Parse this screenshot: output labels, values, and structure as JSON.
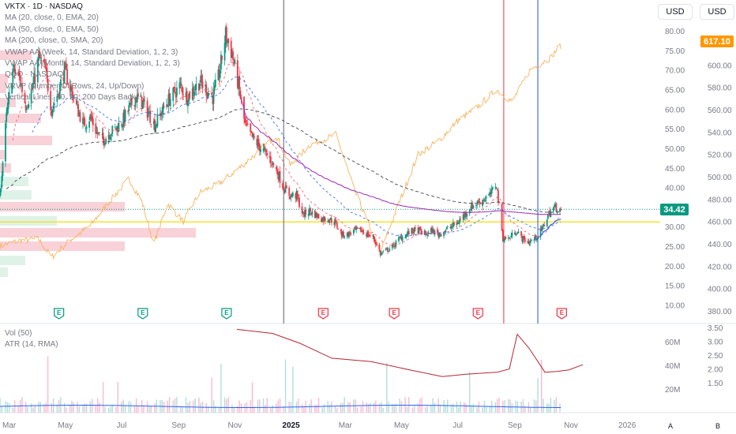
{
  "header": {
    "symbol_line": "VKTX · 1D · NASDAQ",
    "indicators": [
      "MA (20, close, 0, EMA, 20)",
      "MA (50, close, 0, EMA, 50)",
      "MA (200, close, 0, SMA, 20)",
      "VWAP AA (Week, 14, Standard Deviation, 1, 2, 3)",
      "VWAP AA (Month, 14, Standard Deviation, 1, 2, 3)",
      "QQQ · NASDAQ",
      "VRVP (Number Of Rows, 24, Up/Down)",
      "Vertical Lines: 20, 50, 200 Days Back"
    ],
    "currency_left": "USD",
    "currency_right": "USD"
  },
  "lower_pane": {
    "labels": [
      "Vol (50)",
      "ATR (14, RMA)"
    ]
  },
  "corner": {
    "a_label": "A",
    "b_label": "B"
  },
  "chart_data": {
    "type": "candlestick",
    "symbol": "VKTX",
    "price_axis": {
      "min": 10,
      "max": 80,
      "ticks": [
        "10.00",
        "15.00",
        "20.00",
        "25.00",
        "30.00",
        "35.00",
        "40.00",
        "45.00",
        "50.00",
        "55.00",
        "60.00",
        "65.00",
        "70.00",
        "75.00",
        "80.00"
      ]
    },
    "comparison_axis": {
      "min": 380,
      "max": 620,
      "ticks": [
        "380.00",
        "400.00",
        "420.00",
        "440.00",
        "460.00",
        "480.00",
        "500.00",
        "520.00",
        "540.00",
        "560.00",
        "580.00",
        "600.00"
      ]
    },
    "atr_axis": {
      "ticks": [
        "1.50",
        "2.00",
        "2.50",
        "3.00",
        "3.50"
      ]
    },
    "volume_axis": {
      "ticks": [
        "20M",
        "40M",
        "60M"
      ]
    },
    "x_labels": [
      "Mar",
      "May",
      "Jul",
      "Sep",
      "Nov",
      "2025",
      "Mar",
      "May",
      "Jul",
      "Sep",
      "Nov",
      "2026"
    ],
    "last_price": "34.42",
    "comparison_last": "617.10",
    "horizontal_line": 31.2,
    "vertical_lines": [
      {
        "date": "2024-12-24",
        "color": "#5d606b"
      },
      {
        "date": "2025-08-20",
        "color": "#f23645"
      },
      {
        "date": "2025-09-26",
        "color": "#1e53e5"
      }
    ],
    "earnings_markers": [
      {
        "date": "2024-04-24",
        "label": "E",
        "status": "past"
      },
      {
        "date": "2024-07-24",
        "label": "E",
        "status": "past"
      },
      {
        "date": "2024-10-23",
        "label": "E",
        "status": "past"
      },
      {
        "date": "2025-02-05",
        "label": "E",
        "status": "upcoming"
      },
      {
        "date": "2025-04-23",
        "label": "E",
        "status": "upcoming"
      },
      {
        "date": "2025-07-23",
        "label": "E",
        "status": "upcoming"
      },
      {
        "date": "2025-10-22",
        "label": "E",
        "status": "upcoming"
      }
    ],
    "price_path": [
      [
        "2024-02-20",
        38
      ],
      [
        "2024-02-27",
        58
      ],
      [
        "2024-03-05",
        70
      ],
      [
        "2024-03-12",
        68
      ],
      [
        "2024-03-19",
        61
      ],
      [
        "2024-03-26",
        65
      ],
      [
        "2024-04-02",
        73
      ],
      [
        "2024-04-09",
        70
      ],
      [
        "2024-04-16",
        60
      ],
      [
        "2024-04-23",
        64
      ],
      [
        "2024-04-30",
        70
      ],
      [
        "2024-05-07",
        65
      ],
      [
        "2024-05-14",
        60
      ],
      [
        "2024-05-21",
        56
      ],
      [
        "2024-05-28",
        58
      ],
      [
        "2024-06-04",
        54
      ],
      [
        "2024-06-11",
        52
      ],
      [
        "2024-06-18",
        54
      ],
      [
        "2024-06-25",
        55
      ],
      [
        "2024-07-02",
        57
      ],
      [
        "2024-07-09",
        60
      ],
      [
        "2024-07-16",
        63
      ],
      [
        "2024-07-23",
        62
      ],
      [
        "2024-07-30",
        59
      ],
      [
        "2024-08-06",
        56
      ],
      [
        "2024-08-13",
        59
      ],
      [
        "2024-08-20",
        62
      ],
      [
        "2024-08-27",
        64
      ],
      [
        "2024-09-03",
        66
      ],
      [
        "2024-09-10",
        63
      ],
      [
        "2024-09-17",
        65
      ],
      [
        "2024-09-24",
        67
      ],
      [
        "2024-10-01",
        65
      ],
      [
        "2024-10-08",
        63
      ],
      [
        "2024-10-15",
        69
      ],
      [
        "2024-10-22",
        79
      ],
      [
        "2024-10-29",
        74
      ],
      [
        "2024-11-05",
        66
      ],
      [
        "2024-11-12",
        56
      ],
      [
        "2024-11-19",
        53
      ],
      [
        "2024-11-26",
        51
      ],
      [
        "2024-12-03",
        49
      ],
      [
        "2024-12-10",
        47
      ],
      [
        "2024-12-17",
        44
      ],
      [
        "2024-12-24",
        40
      ],
      [
        "2024-12-31",
        38
      ],
      [
        "2025-01-07",
        38
      ],
      [
        "2025-01-14",
        33
      ],
      [
        "2025-01-21",
        34
      ],
      [
        "2025-01-28",
        33
      ],
      [
        "2025-02-04",
        32
      ],
      [
        "2025-02-11",
        32
      ],
      [
        "2025-02-18",
        31
      ],
      [
        "2025-02-25",
        28
      ],
      [
        "2025-03-04",
        28
      ],
      [
        "2025-03-11",
        29
      ],
      [
        "2025-03-18",
        29
      ],
      [
        "2025-03-25",
        28
      ],
      [
        "2025-04-01",
        27
      ],
      [
        "2025-04-08",
        23
      ],
      [
        "2025-04-15",
        24
      ],
      [
        "2025-04-22",
        25
      ],
      [
        "2025-04-29",
        27
      ],
      [
        "2025-05-06",
        28
      ],
      [
        "2025-05-13",
        29
      ],
      [
        "2025-05-20",
        29
      ],
      [
        "2025-05-27",
        28
      ],
      [
        "2025-06-03",
        29
      ],
      [
        "2025-06-10",
        28
      ],
      [
        "2025-06-17",
        29
      ],
      [
        "2025-06-24",
        30
      ],
      [
        "2025-07-01",
        31
      ],
      [
        "2025-07-08",
        33
      ],
      [
        "2025-07-15",
        35
      ],
      [
        "2025-07-22",
        36
      ],
      [
        "2025-07-29",
        37
      ],
      [
        "2025-08-05",
        38
      ],
      [
        "2025-08-12",
        41
      ],
      [
        "2025-08-19",
        27
      ],
      [
        "2025-08-26",
        27
      ],
      [
        "2025-09-02",
        29
      ],
      [
        "2025-09-09",
        27
      ],
      [
        "2025-09-16",
        26
      ],
      [
        "2025-09-23",
        27
      ],
      [
        "2025-09-30",
        29
      ],
      [
        "2025-10-07",
        33
      ],
      [
        "2025-10-14",
        35
      ],
      [
        "2025-10-21",
        34.42
      ]
    ],
    "comparison_path": [
      [
        "2024-02-20",
        438
      ],
      [
        "2024-03-12",
        443
      ],
      [
        "2024-04-02",
        444
      ],
      [
        "2024-04-16",
        428
      ],
      [
        "2024-05-07",
        444
      ],
      [
        "2024-05-28",
        456
      ],
      [
        "2024-06-18",
        478
      ],
      [
        "2024-07-09",
        498
      ],
      [
        "2024-07-23",
        478
      ],
      [
        "2024-08-05",
        440
      ],
      [
        "2024-08-20",
        476
      ],
      [
        "2024-09-06",
        460
      ],
      [
        "2024-09-24",
        486
      ],
      [
        "2024-10-15",
        494
      ],
      [
        "2024-11-12",
        512
      ],
      [
        "2024-12-16",
        537
      ],
      [
        "2024-12-31",
        510
      ],
      [
        "2025-01-21",
        528
      ],
      [
        "2025-02-19",
        538
      ],
      [
        "2025-03-10",
        490
      ],
      [
        "2025-04-08",
        432
      ],
      [
        "2025-04-28",
        476
      ],
      [
        "2025-05-19",
        520
      ],
      [
        "2025-06-10",
        532
      ],
      [
        "2025-07-01",
        550
      ],
      [
        "2025-07-22",
        562
      ],
      [
        "2025-08-12",
        578
      ],
      [
        "2025-08-29",
        567
      ],
      [
        "2025-09-18",
        596
      ],
      [
        "2025-10-09",
        606
      ],
      [
        "2025-10-20",
        617.1
      ]
    ]
  }
}
